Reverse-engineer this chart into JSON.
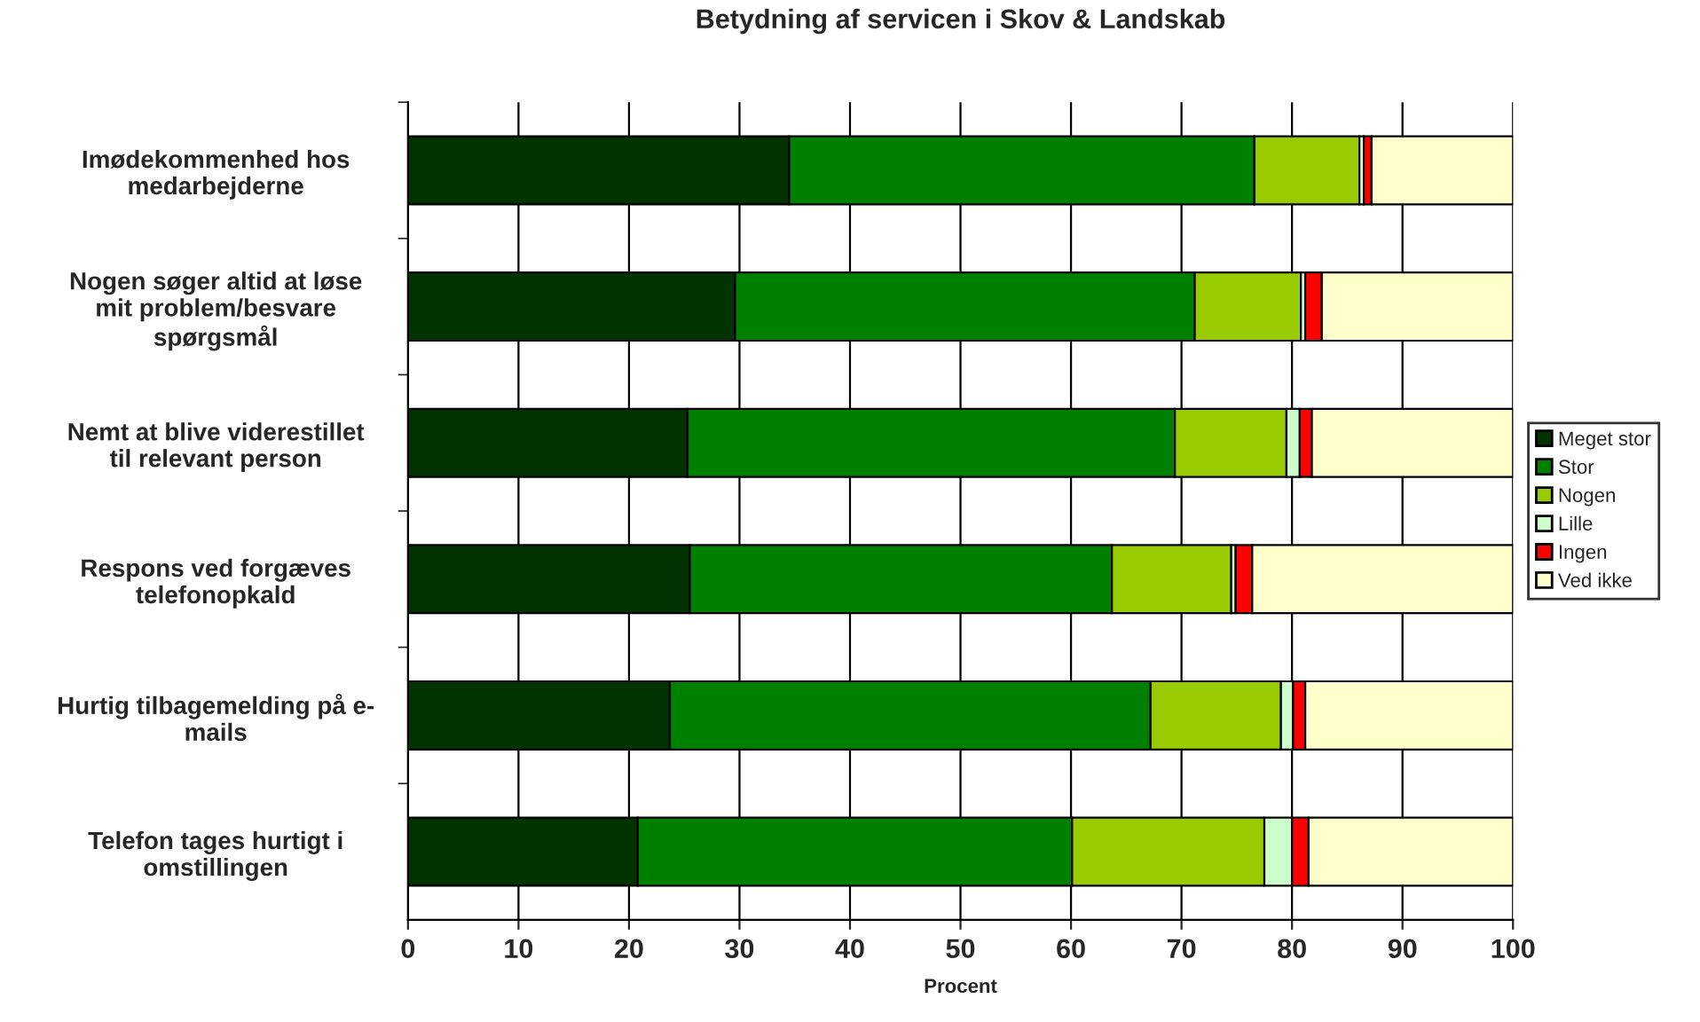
{
  "chart_data": {
    "type": "bar",
    "orientation": "horizontal",
    "stacked": true,
    "title": "Betydning af servicen i Skov & Landskab",
    "xlabel": "Procent",
    "categories": [
      "Imødekommenhed hos\nmedarbejderne",
      "Nogen søger altid at løse\nmit problem/besvare\nspørgsmål",
      "Nemt at blive viderestillet\ntil relevant person",
      "Respons ved forgæves\ntelefonopkald",
      "Hurtig tilbagemelding på e-\nmails",
      "Telefon tages hurtigt i\nomstillingen"
    ],
    "series": [
      {
        "name": "Meget stor",
        "color": "#003300",
        "values": [
          34.5,
          29.6,
          25.3,
          25.5,
          23.7,
          20.8
        ]
      },
      {
        "name": "Stor",
        "color": "#008000",
        "values": [
          42.1,
          41.6,
          44.1,
          38.2,
          43.5,
          39.3
        ]
      },
      {
        "name": "Nogen",
        "color": "#99cc00",
        "values": [
          9.5,
          9.6,
          10.1,
          10.8,
          11.8,
          17.4
        ]
      },
      {
        "name": "Lille",
        "color": "#ccffcc",
        "values": [
          0.4,
          0.4,
          1.2,
          0.4,
          1.1,
          2.5
        ]
      },
      {
        "name": "Ingen",
        "color": "#ff0000",
        "values": [
          0.7,
          1.5,
          1.1,
          1.5,
          1.1,
          1.5
        ]
      },
      {
        "name": "Ved ikke",
        "color": "#ffffcc",
        "values": [
          12.8,
          17.3,
          18.2,
          23.6,
          18.8,
          18.5
        ]
      }
    ],
    "xlim": [
      0,
      100
    ],
    "xticks": [
      0,
      10,
      20,
      30,
      40,
      50,
      60,
      70,
      80,
      90,
      100
    ],
    "grid": "x",
    "legend": "right"
  }
}
